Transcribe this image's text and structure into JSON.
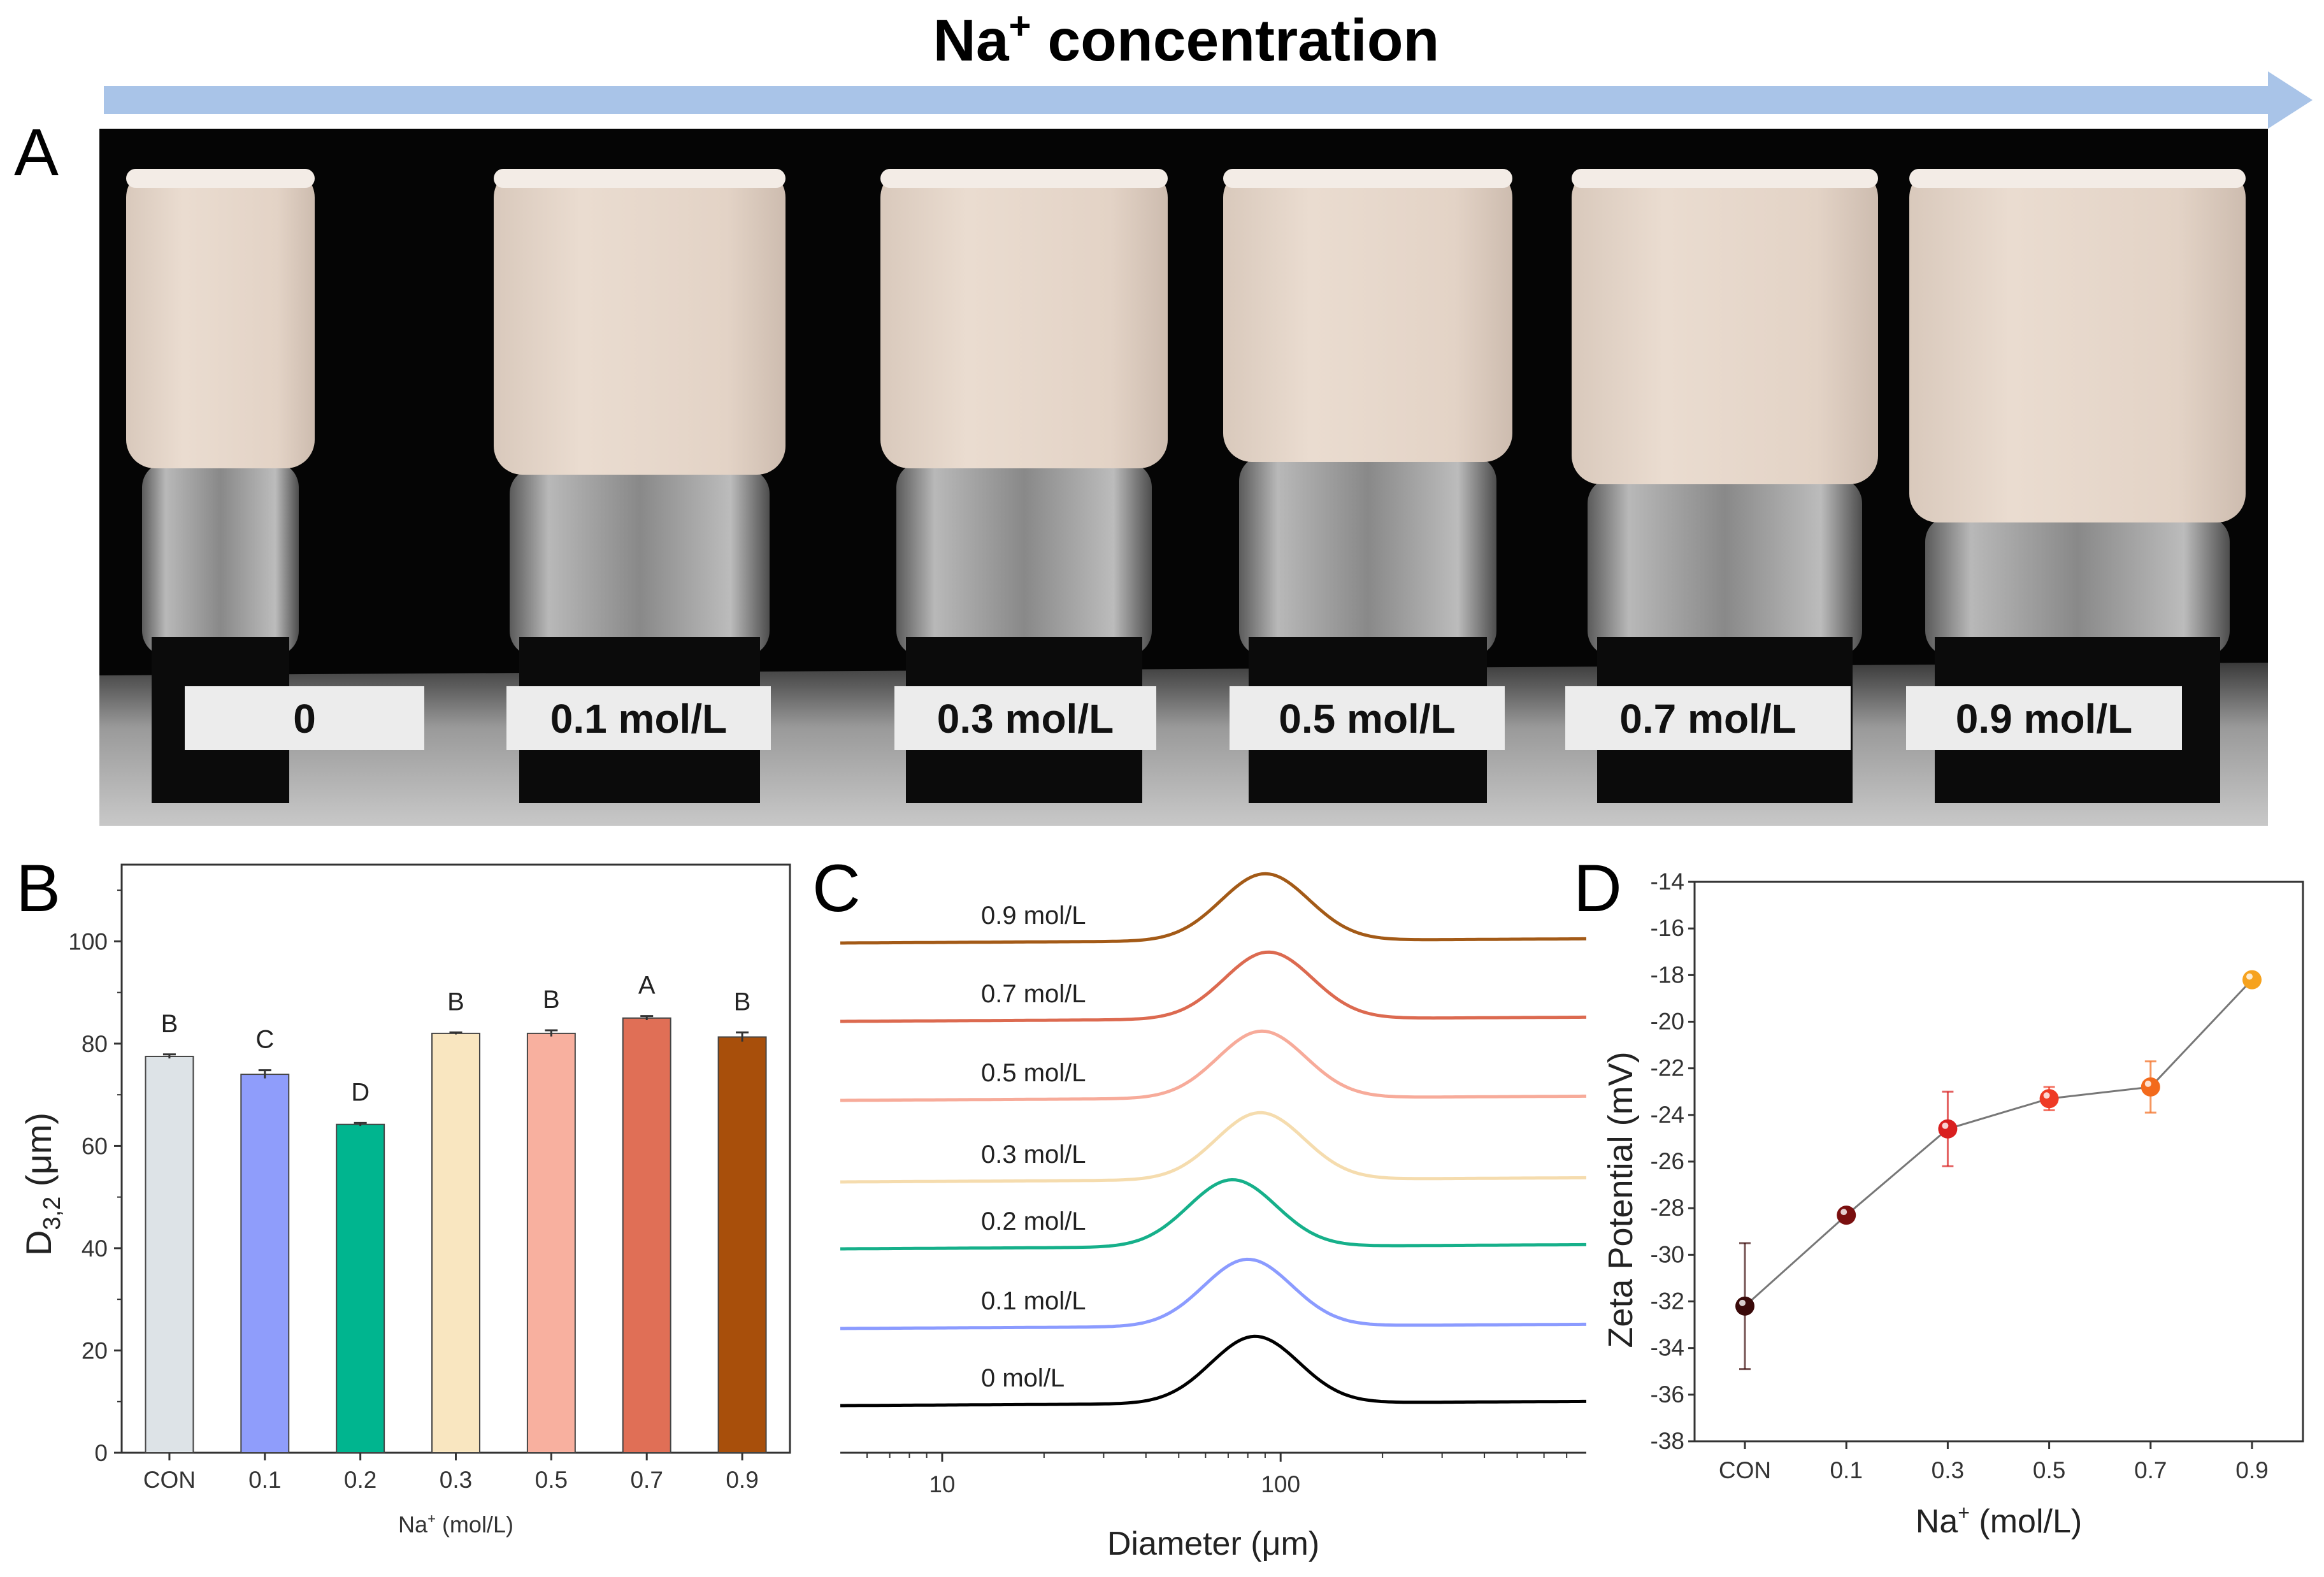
{
  "header": {
    "title": "Na",
    "title_sup": "+",
    "title_rest": " concentration",
    "arrow_color": "#a9c4e8"
  },
  "panels": {
    "a": "A",
    "b": "B",
    "c": "C",
    "d": "D"
  },
  "photo": {
    "vial_labels": [
      "0",
      "0.1 mol/L",
      "0.3 mol/L",
      "0.5 mol/L",
      "0.7 mol/L",
      "0.9 mol/L"
    ]
  },
  "chart_data": [
    {
      "panel": "B",
      "type": "bar",
      "categories": [
        "CON",
        "0.1",
        "0.2",
        "0.3",
        "0.5",
        "0.7",
        "0.9"
      ],
      "values": [
        77.5,
        74.0,
        64.2,
        82.0,
        82.0,
        85.0,
        81.3
      ],
      "errors": [
        0.4,
        0.8,
        0.3,
        0.2,
        0.6,
        0.4,
        0.9
      ],
      "significance": [
        "B",
        "C",
        "D",
        "B",
        "B",
        "A",
        "B"
      ],
      "colors": [
        "#dde3e7",
        "#8f9dfb",
        "#00b58f",
        "#f9e6c0",
        "#f8b09f",
        "#e06f56",
        "#a84f0b"
      ],
      "ylabel": "D",
      "ylabel_sub": "3,2",
      "ylabel_rest": " (μm)",
      "xlabel": "Na",
      "xlabel_sup": "+",
      "xlabel_rest": " (mol/L)",
      "ylim": [
        0,
        115
      ],
      "yticks": [
        "0",
        "20",
        "40",
        "60",
        "80",
        "100"
      ]
    },
    {
      "panel": "C",
      "type": "line",
      "xlabel": "Diameter (μm)",
      "xscale": "log",
      "xlim": [
        5,
        800
      ],
      "xticks": [
        "10",
        "100"
      ],
      "series": [
        {
          "name": "0.9 mol/L",
          "peak_diameter": 90,
          "color": "#a35a17"
        },
        {
          "name": "0.7 mol/L",
          "peak_diameter": 92,
          "color": "#dc6a50"
        },
        {
          "name": "0.5 mol/L",
          "peak_diameter": 88,
          "color": "#f7ab9a"
        },
        {
          "name": "0.3 mol/L",
          "peak_diameter": 87,
          "color": "#f5dcae"
        },
        {
          "name": "0.2 mol/L",
          "peak_diameter": 72,
          "color": "#16b08a"
        },
        {
          "name": "0.1 mol/L",
          "peak_diameter": 80,
          "color": "#8b9bff"
        },
        {
          "name": "0 mol/L",
          "peak_diameter": 84,
          "color": "#000000"
        }
      ]
    },
    {
      "panel": "D",
      "type": "line",
      "categories": [
        "CON",
        "0.1",
        "0.3",
        "0.5",
        "0.7",
        "0.9"
      ],
      "values": [
        -32.2,
        -28.3,
        -24.6,
        -23.3,
        -22.8,
        -18.2
      ],
      "errors": [
        2.7,
        0.2,
        1.6,
        0.5,
        1.1,
        0.1
      ],
      "colors": [
        "#3a0a0a",
        "#7a0f0f",
        "#d91f1f",
        "#ee3a25",
        "#f36a1c",
        "#f6a21e"
      ],
      "ylabel": "Zeta Potential (mV)",
      "xlabel": "Na",
      "xlabel_sup": "+",
      "xlabel_rest": " (mol/L)",
      "ylim": [
        -38,
        -14
      ],
      "yticks": [
        "-38",
        "-36",
        "-34",
        "-32",
        "-30",
        "-28",
        "-26",
        "-24",
        "-22",
        "-20",
        "-18",
        "-16",
        "-14"
      ]
    }
  ]
}
